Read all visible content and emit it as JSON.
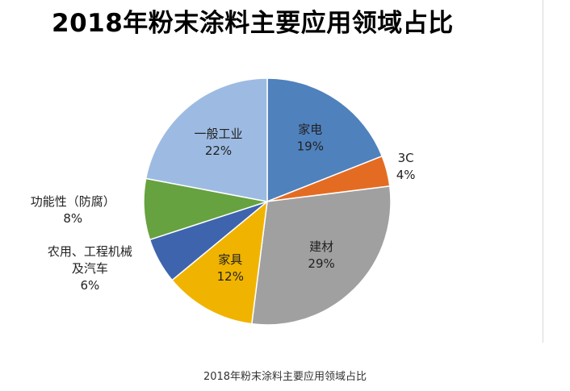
{
  "chart_data": {
    "type": "pie",
    "title": "2018年粉末涂料主要应用领域占比",
    "slices": [
      {
        "label": "家电",
        "value": 19,
        "value_label": "19%",
        "color": "#4f81bd",
        "label_lines": [
          "家电"
        ],
        "label_pos": "inside"
      },
      {
        "label": "3C",
        "value": 4,
        "value_label": "4%",
        "color": "#e46c22",
        "label_lines": [
          "3C"
        ],
        "label_pos": "outside"
      },
      {
        "label": "建材",
        "value": 29,
        "value_label": "29%",
        "color": "#a0a0a0",
        "label_lines": [
          "建材"
        ],
        "label_pos": "inside"
      },
      {
        "label": "家具",
        "value": 12,
        "value_label": "12%",
        "color": "#f0b400",
        "label_lines": [
          "家具"
        ],
        "label_pos": "inside"
      },
      {
        "label": "农用、工程机械及汽车",
        "value": 6,
        "value_label": "6%",
        "color": "#3f64ae",
        "label_lines": [
          "农用、工程机械",
          "及汽车"
        ],
        "label_pos": "outside"
      },
      {
        "label": "功能性（防腐）",
        "value": 8,
        "value_label": "8%",
        "color": "#66a23f",
        "label_lines": [
          "功能性（防腐）"
        ],
        "label_pos": "outside"
      },
      {
        "label": "一般工业",
        "value": 22,
        "value_label": "22%",
        "color": "#9dbbe2",
        "label_lines": [
          "一般工业"
        ],
        "label_pos": "inside"
      }
    ]
  },
  "caption": "2018年粉末涂料主要应用领域占比"
}
